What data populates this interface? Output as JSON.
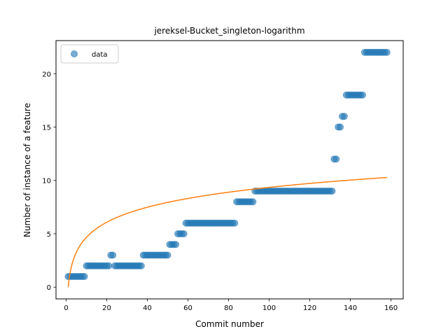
{
  "chart_data": {
    "type": "scatter",
    "title": "jereksel-Bucket_singleton-logarithm",
    "xlabel": "Commit number",
    "ylabel": "Number of instance of a feature",
    "xlim": [
      -5,
      166
    ],
    "ylim": [
      -1.1,
      23.1
    ],
    "xticks": [
      0,
      20,
      40,
      60,
      80,
      100,
      120,
      140,
      160
    ],
    "yticks": [
      0,
      5,
      10,
      15,
      20
    ],
    "legend": {
      "position": "top-left",
      "entries": [
        "data"
      ]
    },
    "colors": {
      "data": "#1f77b4",
      "fit": "#ff7f0e"
    },
    "series": [
      {
        "name": "data",
        "kind": "scatter",
        "runs": [
          {
            "from": 1,
            "to": 9,
            "y": 1
          },
          {
            "from": 10,
            "to": 21,
            "y": 2
          },
          {
            "from": 22,
            "to": 23,
            "y": 3
          },
          {
            "from": 24,
            "to": 37,
            "y": 2
          },
          {
            "from": 38,
            "to": 50,
            "y": 3
          },
          {
            "from": 51,
            "to": 54,
            "y": 4
          },
          {
            "from": 55,
            "to": 58,
            "y": 5
          },
          {
            "from": 59,
            "to": 83,
            "y": 6
          },
          {
            "from": 84,
            "to": 92,
            "y": 8
          },
          {
            "from": 93,
            "to": 131,
            "y": 9
          },
          {
            "from": 132,
            "to": 133,
            "y": 12
          },
          {
            "from": 134,
            "to": 135,
            "y": 15
          },
          {
            "from": 136,
            "to": 137,
            "y": 16
          },
          {
            "from": 138,
            "to": 146,
            "y": 18
          },
          {
            "from": 147,
            "to": 158,
            "y": 22
          }
        ]
      },
      {
        "name": "fit",
        "kind": "line",
        "formula": "a*ln(x)",
        "a": 2.03,
        "x_range": [
          1,
          158
        ]
      }
    ]
  }
}
